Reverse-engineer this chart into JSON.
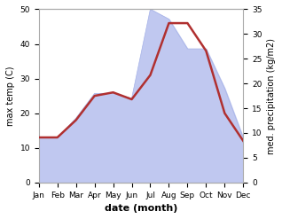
{
  "months": [
    "Jan",
    "Feb",
    "Mar",
    "Apr",
    "May",
    "Jun",
    "Jul",
    "Aug",
    "Sep",
    "Oct",
    "Nov",
    "Dec"
  ],
  "temp": [
    13,
    13,
    18,
    25,
    26,
    24,
    31,
    46,
    46,
    38,
    20,
    12
  ],
  "precip": [
    9,
    9,
    13,
    18,
    18,
    17,
    35,
    33,
    27,
    27,
    19,
    9
  ],
  "temp_ylim": [
    0,
    50
  ],
  "precip_ylim": [
    0,
    35
  ],
  "temp_color": "#b03030",
  "fill_color": "#c0c8f0",
  "fill_edge_color": "#a8b4e8",
  "ylabel_left": "max temp (C)",
  "ylabel_right": "med. precipitation (kg/m2)",
  "xlabel": "date (month)",
  "bg_color": "#ffffff",
  "spine_color": "#aaaaaa"
}
